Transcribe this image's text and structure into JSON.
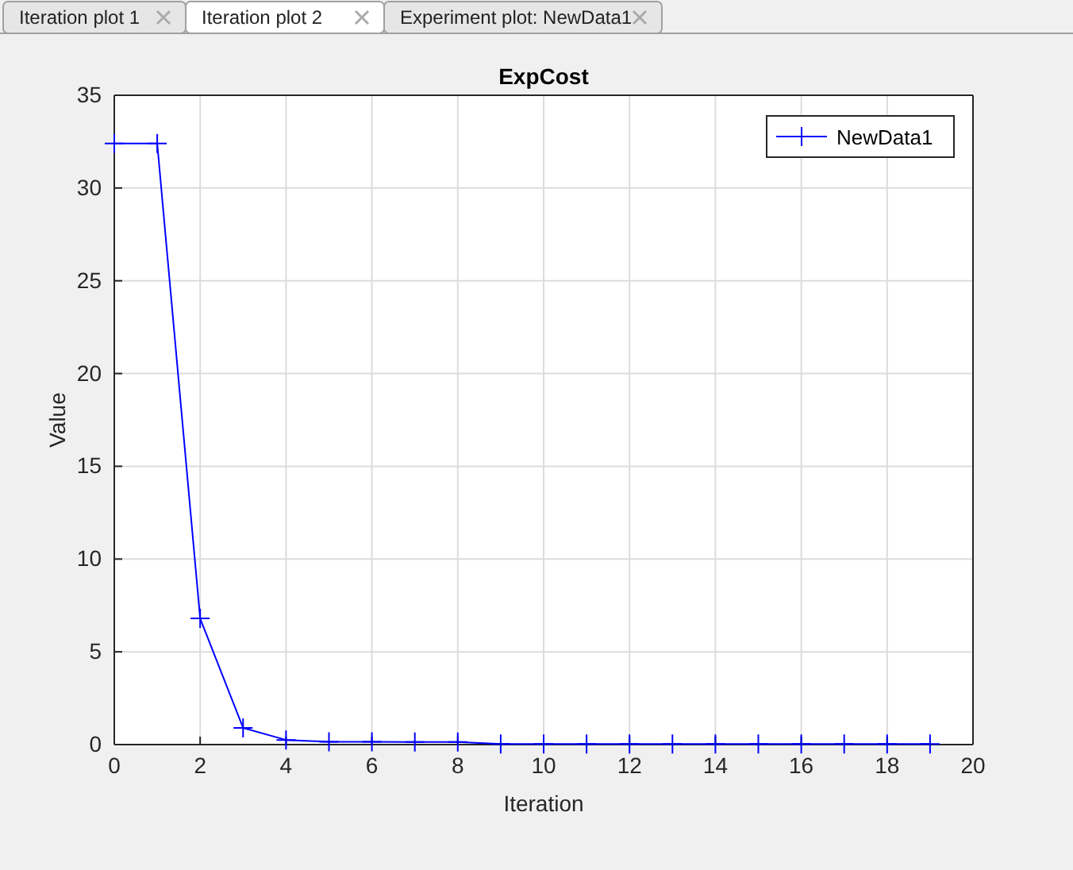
{
  "chart_data": {
    "type": "line",
    "title": "ExpCost",
    "xlabel": "Iteration",
    "ylabel": "Value",
    "annotations": [
      "Iteration plot 1",
      "Iteration plot 2",
      "Experiment plot: NewData1"
    ],
    "x": [
      0,
      1,
      2,
      3,
      4,
      5,
      6,
      7,
      8,
      9,
      10,
      11,
      12,
      13,
      14,
      15,
      16,
      17,
      18,
      19
    ],
    "series": [
      {
        "name": "NewData1",
        "color": "#0000ff",
        "values": [
          32.4,
          32.4,
          6.8,
          0.9,
          0.25,
          0.15,
          0.15,
          0.14,
          0.14,
          0.03,
          0.03,
          0.03,
          0.03,
          0.03,
          0.03,
          0.03,
          0.03,
          0.03,
          0.03,
          0.03
        ]
      }
    ],
    "xlim": [
      0,
      20
    ],
    "xticks": [
      0,
      2,
      4,
      6,
      8,
      10,
      12,
      14,
      16,
      18,
      20
    ],
    "ylim": [
      0,
      35
    ],
    "yticks": [
      0,
      5,
      10,
      15,
      20,
      25,
      30,
      35
    ],
    "grid": true,
    "legend": "top right",
    "marker": "cross",
    "line_style": "solid"
  }
}
